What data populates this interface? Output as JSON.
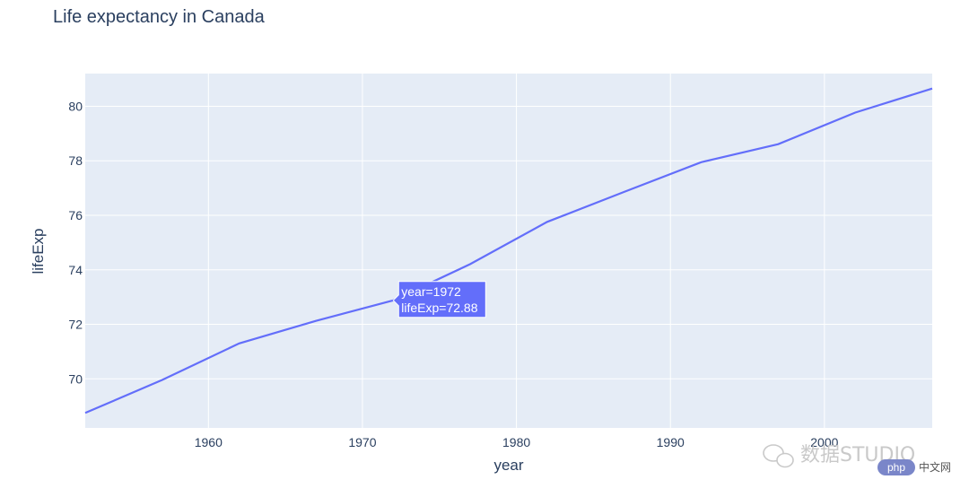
{
  "chart_data": {
    "type": "line",
    "title": "Life expectancy in Canada",
    "xlabel": "year",
    "ylabel": "lifeExp",
    "xlim": [
      1952,
      2007
    ],
    "ylim": [
      68.2,
      81.2
    ],
    "xticks": [
      1960,
      1970,
      1980,
      1990,
      2000
    ],
    "yticks": [
      70,
      72,
      74,
      76,
      78,
      80
    ],
    "grid": true,
    "line_color": "#636efa",
    "plot_bg": "#e5ecf6",
    "x": [
      1952,
      1957,
      1962,
      1967,
      1972,
      1977,
      1982,
      1987,
      1992,
      1997,
      2002,
      2007
    ],
    "y": [
      68.75,
      69.96,
      71.3,
      72.13,
      72.88,
      74.21,
      75.76,
      76.86,
      77.95,
      78.61,
      79.77,
      80.65
    ],
    "hover": {
      "x": 1972,
      "y": 72.88,
      "line1": "year=1972",
      "line2": "lifeExp=72.88"
    }
  },
  "watermark": {
    "text": "数据STUDIO",
    "badge": "php",
    "site": "中文网"
  }
}
